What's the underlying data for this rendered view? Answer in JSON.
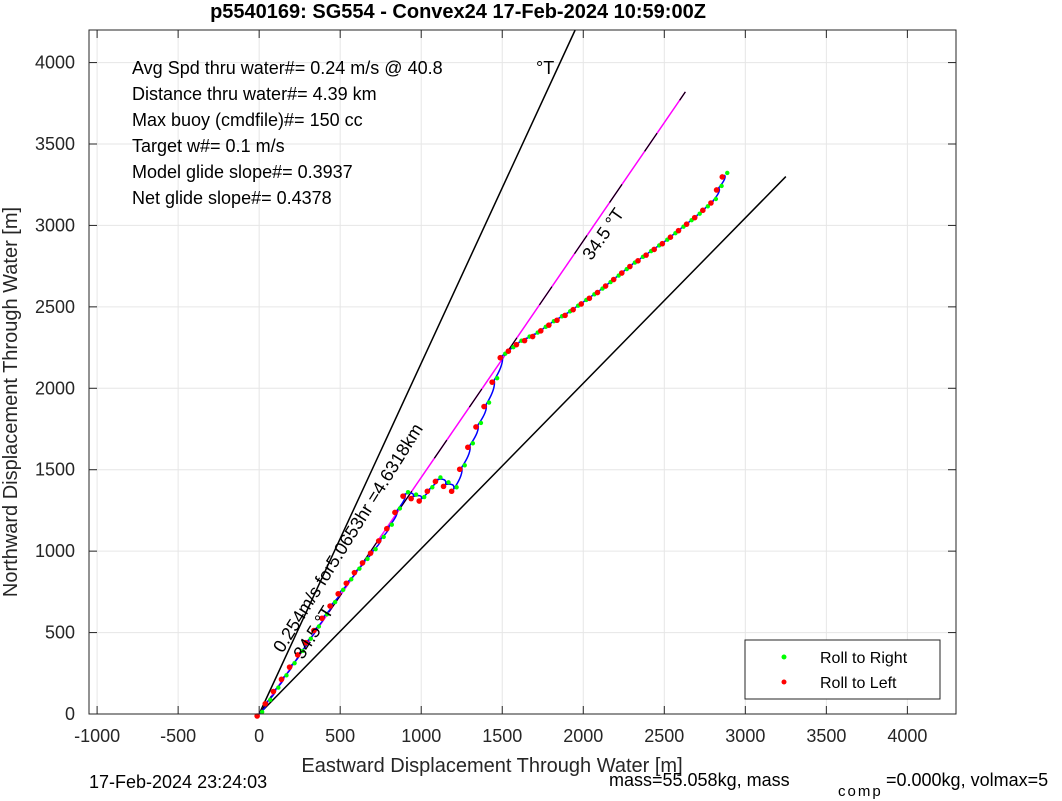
{
  "chart_data": {
    "type": "line",
    "title": "p5540169: SG554 - Convex24 17-Feb-2024 10:59:00Z",
    "xlabel": "Eastward Displacement Through Water [m]",
    "ylabel": "Northward Displacement Through Water [m]",
    "xlim": [
      -1050,
      4300
    ],
    "ylim": [
      0,
      4200
    ],
    "xticks": [
      -1000,
      -500,
      0,
      500,
      1000,
      1500,
      2000,
      2500,
      3000,
      3500,
      4000
    ],
    "yticks": [
      0,
      500,
      1000,
      1500,
      2000,
      2500,
      3000,
      3500,
      4000
    ],
    "grid": true,
    "info_lines": [
      "Avg Spd thru water#=  0.24 m/s @  40.8",
      "Distance thru water#=  4.39 km",
      "Max buoy (cmdfile)#= 150 cc",
      "Target w#= 0.1 m/s",
      "Model glide slope#= 0.3937",
      "Net glide slope#= 0.4378"
    ],
    "info_degree_suffix": "°T",
    "cone_lines": [
      {
        "x": [
          0,
          1950
        ],
        "y": [
          0,
          4200
        ],
        "color": "#000000"
      },
      {
        "x": [
          0,
          3250
        ],
        "y": [
          0,
          3300
        ],
        "color": "#000000"
      }
    ],
    "heading_line": {
      "x": [
        0,
        2630
      ],
      "y": [
        0,
        3820
      ],
      "color": "#ff00ff"
    },
    "track": {
      "color": "#0000ff",
      "x": [
        0,
        100,
        200,
        300,
        400,
        500,
        600,
        700,
        800,
        900,
        1000,
        1100,
        1200,
        1300,
        1400,
        1500,
        1600,
        1700,
        1800,
        1900,
        2000,
        2100,
        2200,
        2300,
        2400,
        2500,
        2600,
        2700,
        2800,
        2870
      ],
      "y": [
        0,
        150,
        300,
        450,
        600,
        750,
        880,
        1000,
        1150,
        1350,
        1320,
        1440,
        1380,
        1650,
        1900,
        2200,
        2280,
        2330,
        2400,
        2460,
        2530,
        2600,
        2680,
        2760,
        2830,
        2900,
        2980,
        3060,
        3150,
        3310
      ]
    },
    "annotations": [
      {
        "text": "0.254m/s for5.0653hr =4.6318km",
        "x": 145,
        "y": 370,
        "angle": -58
      },
      {
        "text": "34.5 °T",
        "x": 270,
        "y": 330,
        "angle": -58
      },
      {
        "text": "34.5 °T",
        "x": 2050,
        "y": 2780,
        "angle": -55
      }
    ],
    "legend": {
      "position": "bottom-right",
      "entries": [
        {
          "label": "Roll to Right",
          "color": "#00ff00"
        },
        {
          "label": "Roll to Left",
          "color": "#ff0000"
        }
      ]
    },
    "colors": {
      "roll_right": "#00ff00",
      "roll_left": "#ff0000"
    }
  },
  "footer": {
    "timestamp": "17-Feb-2024 23:24:03",
    "mass_text": "mass=55.058kg, mass",
    "mass_comp_sub": "comp",
    "mass_tail": "=0.000kg, volmax=5"
  }
}
